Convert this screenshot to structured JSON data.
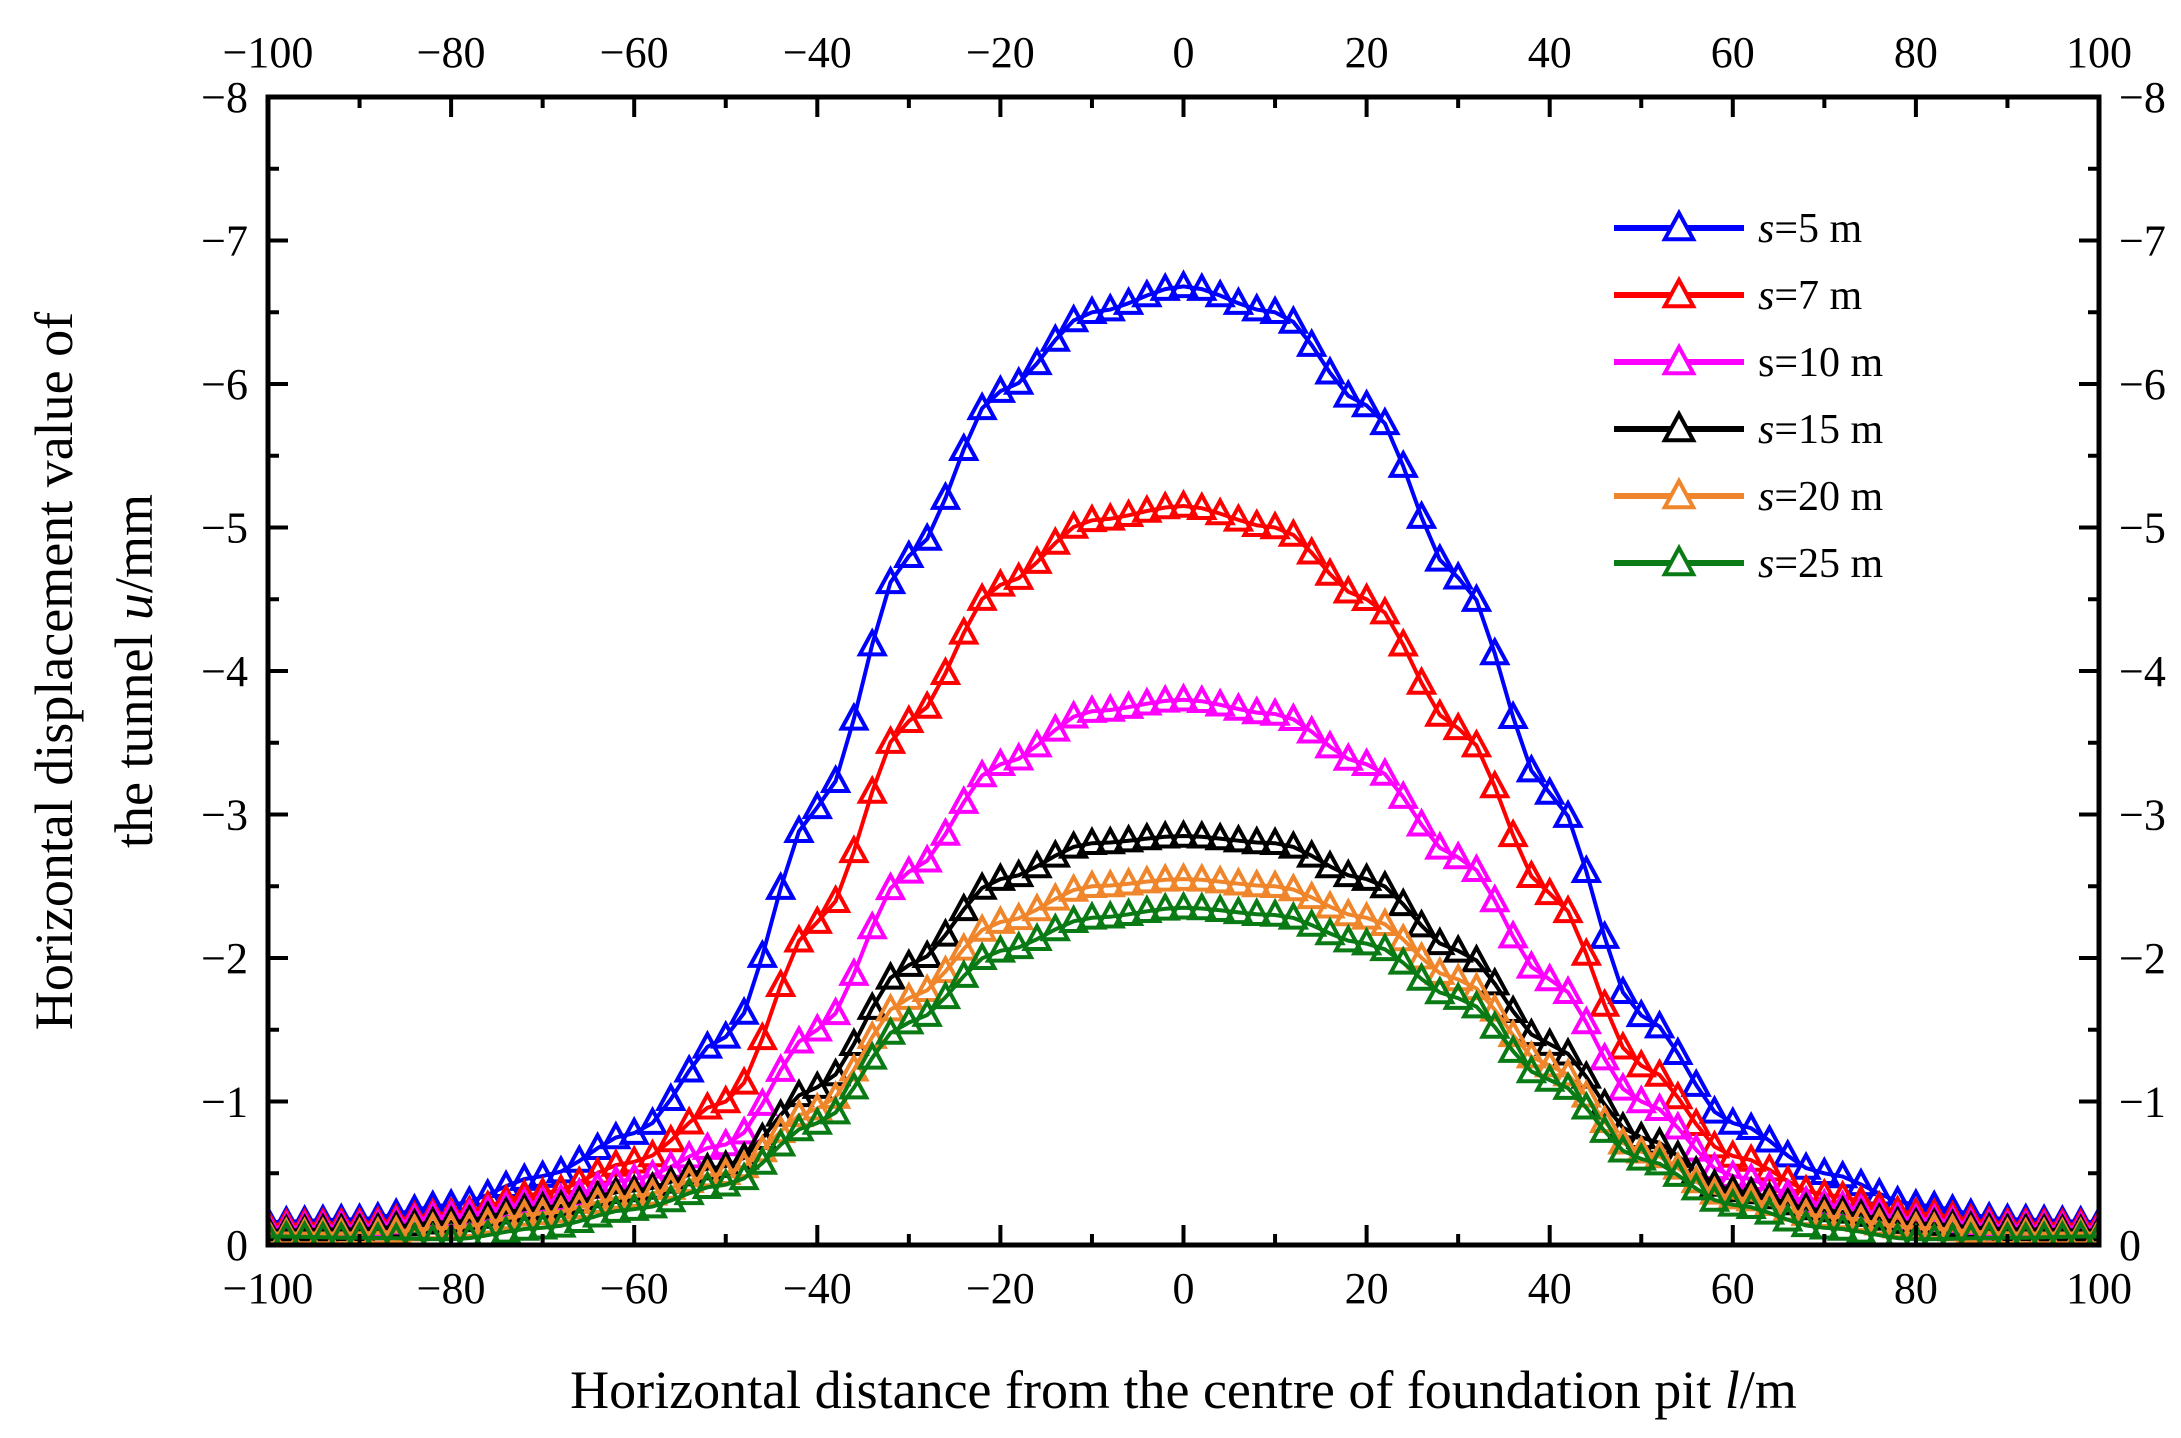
{
  "chart_data": {
    "type": "scatter",
    "xlabel": "Horizontal distance from the centre of foundation pit l/m",
    "xlabel_parts": [
      "Horizontal distance from the centre of foundation pit ",
      "l",
      "/m"
    ],
    "ylabel_line1": "Horizontal displacement value of",
    "ylabel_line2_parts": [
      "the tunnel ",
      "u",
      "/mm"
    ],
    "xlim": [
      -100,
      100
    ],
    "ylim": [
      0,
      -8
    ],
    "x_ticks": [
      -100,
      -80,
      -60,
      -40,
      -20,
      0,
      20,
      40,
      60,
      80,
      100
    ],
    "x_tick_labels": [
      "−100",
      "−80",
      "−60",
      "−40",
      "−20",
      "0",
      "20",
      "40",
      "60",
      "80",
      "100"
    ],
    "y_ticks": [
      0,
      -1,
      -2,
      -3,
      -4,
      -5,
      -6,
      -7,
      -8
    ],
    "y_tick_labels": [
      "0",
      "−1",
      "−2",
      "−3",
      "−4",
      "−5",
      "−6",
      "−7",
      "−8"
    ],
    "right_tick_labels": [
      "0",
      "−1",
      "−2",
      "−3",
      "−4",
      "−5",
      "−6",
      "−7",
      "−8"
    ],
    "legend_position": "top-right",
    "marker": "open-triangle",
    "x_step": 2,
    "series": [
      {
        "name": "s=5 m",
        "name_var": "s",
        "name_rest": "=5 m",
        "name_italic": true,
        "color": "#0000ff",
        "profile": [
          [
            -100,
            -0.16
          ],
          [
            -90,
            -0.18
          ],
          [
            -80,
            -0.28
          ],
          [
            -70,
            -0.48
          ],
          [
            -60,
            -0.78
          ],
          [
            -50,
            -1.45
          ],
          [
            -40,
            -3.05
          ],
          [
            -30,
            -4.8
          ],
          [
            -20,
            -5.95
          ],
          [
            -10,
            -6.5
          ],
          [
            0,
            -6.68
          ],
          [
            10,
            -6.5
          ],
          [
            20,
            -5.85
          ],
          [
            30,
            -4.65
          ],
          [
            40,
            -3.15
          ],
          [
            50,
            -1.6
          ],
          [
            60,
            -0.85
          ],
          [
            70,
            -0.5
          ],
          [
            80,
            -0.28
          ],
          [
            90,
            -0.18
          ],
          [
            100,
            -0.16
          ]
        ]
      },
      {
        "name": "s=7 m",
        "name_var": "s",
        "name_rest": "=7 m",
        "name_italic": true,
        "color": "#ff0000",
        "profile": [
          [
            -100,
            -0.14
          ],
          [
            -90,
            -0.15
          ],
          [
            -80,
            -0.22
          ],
          [
            -70,
            -0.36
          ],
          [
            -60,
            -0.58
          ],
          [
            -50,
            -1.0
          ],
          [
            -40,
            -2.25
          ],
          [
            -30,
            -3.65
          ],
          [
            -20,
            -4.6
          ],
          [
            -10,
            -5.05
          ],
          [
            0,
            -5.15
          ],
          [
            10,
            -5.0
          ],
          [
            20,
            -4.5
          ],
          [
            30,
            -3.6
          ],
          [
            40,
            -2.45
          ],
          [
            50,
            -1.25
          ],
          [
            60,
            -0.62
          ],
          [
            70,
            -0.35
          ],
          [
            80,
            -0.22
          ],
          [
            90,
            -0.15
          ],
          [
            100,
            -0.14
          ]
        ]
      },
      {
        "name": "s=10 m",
        "name_var": "s",
        "name_rest": "=10 m",
        "name_italic": false,
        "color": "#ff00ff",
        "profile": [
          [
            -100,
            -0.12
          ],
          [
            -90,
            -0.13
          ],
          [
            -80,
            -0.2
          ],
          [
            -70,
            -0.3
          ],
          [
            -60,
            -0.46
          ],
          [
            -50,
            -0.7
          ],
          [
            -40,
            -1.5
          ],
          [
            -30,
            -2.6
          ],
          [
            -20,
            -3.35
          ],
          [
            -10,
            -3.72
          ],
          [
            0,
            -3.8
          ],
          [
            10,
            -3.7
          ],
          [
            20,
            -3.35
          ],
          [
            30,
            -2.7
          ],
          [
            40,
            -1.85
          ],
          [
            50,
            -1.0
          ],
          [
            60,
            -0.48
          ],
          [
            70,
            -0.28
          ],
          [
            80,
            -0.18
          ],
          [
            90,
            -0.13
          ],
          [
            100,
            -0.12
          ]
        ]
      },
      {
        "name": "s=15 m",
        "name_var": "s",
        "name_rest": "=15 m",
        "name_italic": true,
        "color": "#000000",
        "profile": [
          [
            -100,
            -0.1
          ],
          [
            -90,
            -0.11
          ],
          [
            -80,
            -0.16
          ],
          [
            -70,
            -0.26
          ],
          [
            -60,
            -0.38
          ],
          [
            -50,
            -0.55
          ],
          [
            -40,
            -1.1
          ],
          [
            -30,
            -1.95
          ],
          [
            -20,
            -2.55
          ],
          [
            -10,
            -2.8
          ],
          [
            0,
            -2.85
          ],
          [
            10,
            -2.8
          ],
          [
            20,
            -2.55
          ],
          [
            30,
            -2.05
          ],
          [
            40,
            -1.4
          ],
          [
            50,
            -0.75
          ],
          [
            60,
            -0.38
          ],
          [
            70,
            -0.24
          ],
          [
            80,
            -0.15
          ],
          [
            90,
            -0.11
          ],
          [
            100,
            -0.1
          ]
        ]
      },
      {
        "name": "s=20 m",
        "name_var": "s",
        "name_rest": "=20 m",
        "name_italic": true,
        "color": "#f0862b",
        "profile": [
          [
            -100,
            -0.08
          ],
          [
            -90,
            -0.08
          ],
          [
            -80,
            -0.12
          ],
          [
            -70,
            -0.22
          ],
          [
            -60,
            -0.34
          ],
          [
            -50,
            -0.5
          ],
          [
            -40,
            -0.95
          ],
          [
            -30,
            -1.72
          ],
          [
            -20,
            -2.25
          ],
          [
            -10,
            -2.5
          ],
          [
            0,
            -2.55
          ],
          [
            10,
            -2.5
          ],
          [
            20,
            -2.28
          ],
          [
            30,
            -1.85
          ],
          [
            40,
            -1.25
          ],
          [
            50,
            -0.65
          ],
          [
            60,
            -0.33
          ],
          [
            70,
            -0.2
          ],
          [
            80,
            -0.12
          ],
          [
            90,
            -0.08
          ],
          [
            100,
            -0.08
          ]
        ]
      },
      {
        "name": "s=25 m",
        "name_var": "s",
        "name_rest": "=25 m",
        "name_italic": true,
        "color": "#0a7a14",
        "profile": [
          [
            -100,
            -0.06
          ],
          [
            -90,
            -0.05
          ],
          [
            -80,
            -0.04
          ],
          [
            -70,
            -0.12
          ],
          [
            -60,
            -0.25
          ],
          [
            -50,
            -0.42
          ],
          [
            -40,
            -0.85
          ],
          [
            -30,
            -1.55
          ],
          [
            -20,
            -2.05
          ],
          [
            -10,
            -2.28
          ],
          [
            0,
            -2.35
          ],
          [
            10,
            -2.3
          ],
          [
            20,
            -2.1
          ],
          [
            30,
            -1.72
          ],
          [
            40,
            -1.15
          ],
          [
            50,
            -0.6
          ],
          [
            60,
            -0.28
          ],
          [
            70,
            -0.12
          ],
          [
            80,
            -0.04
          ],
          [
            90,
            -0.05
          ],
          [
            100,
            -0.06
          ]
        ]
      }
    ]
  }
}
